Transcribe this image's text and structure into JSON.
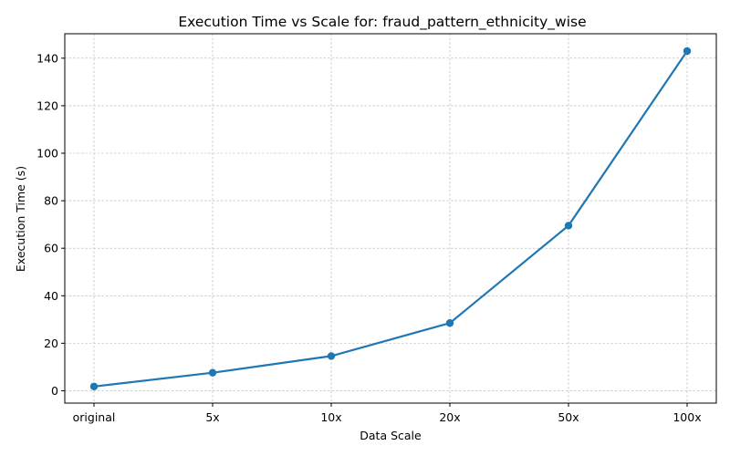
{
  "chart_data": {
    "type": "line",
    "title": "Execution Time vs Scale for: fraud_pattern_ethnicity_wise",
    "xlabel": "Data Scale",
    "ylabel": "Execution Time (s)",
    "categories": [
      "original",
      "5x",
      "10x",
      "20x",
      "50x",
      "100x"
    ],
    "series": [
      {
        "values": [
          1.8,
          7.6,
          14.6,
          28.5,
          69.5,
          143.0
        ]
      }
    ],
    "ylim": [
      -5.2,
      150.3
    ],
    "yticks": [
      0,
      20,
      40,
      60,
      80,
      100,
      120,
      140
    ],
    "grid": true,
    "color": "#1f77b4"
  }
}
